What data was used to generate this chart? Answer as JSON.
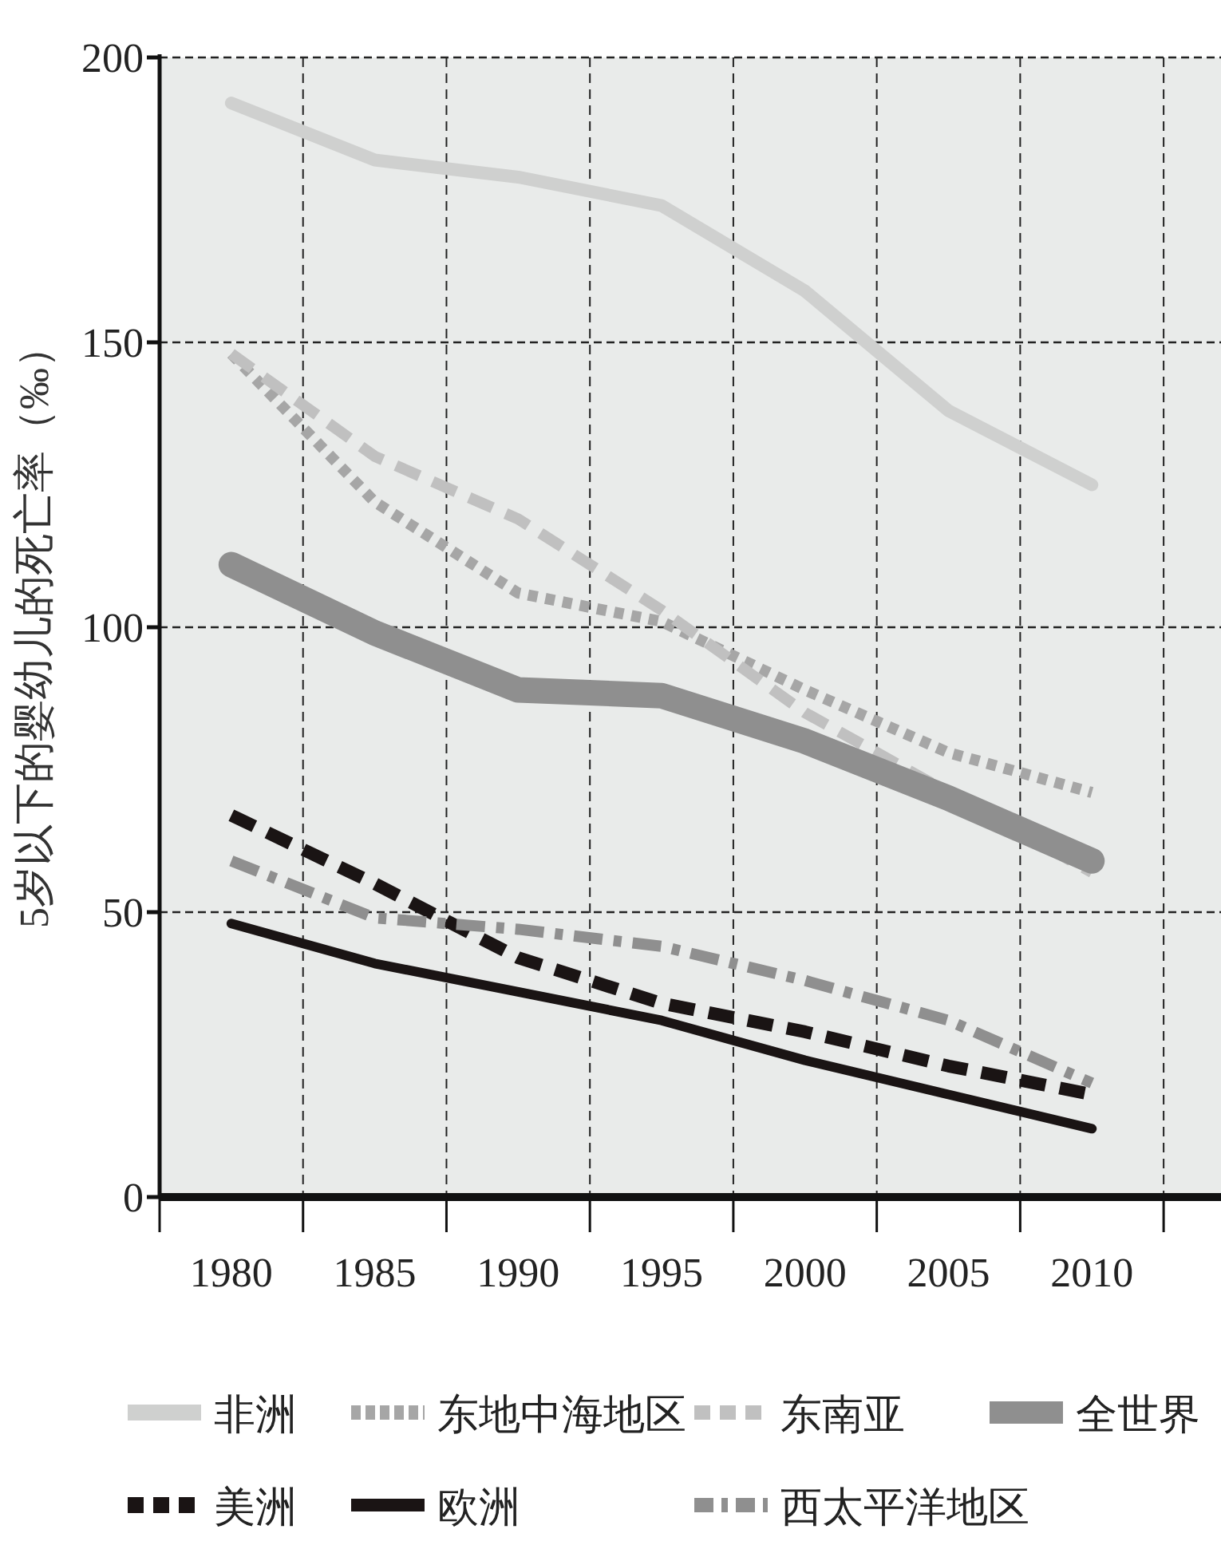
{
  "chart_data": {
    "type": "line",
    "ylabel": "5岁以下的婴幼儿的死亡率（‰）",
    "categories": [
      "1980",
      "1985",
      "1990",
      "1995",
      "2000",
      "2005",
      "2010"
    ],
    "ylim": [
      0,
      200
    ],
    "yticks": [
      0,
      50,
      100,
      150,
      200
    ],
    "grid": true,
    "legend": "bottom",
    "series": [
      {
        "name": "非洲",
        "color": "#cfd0cf",
        "line_style": "solid",
        "values": [
          192,
          182,
          179,
          174,
          159,
          138,
          125
        ]
      },
      {
        "name": "东地中海地区",
        "color": "#a6a6a6",
        "line_style": "dotted",
        "values": [
          148,
          122,
          106,
          101,
          89,
          78,
          71
        ]
      },
      {
        "name": "东南亚",
        "color": "#c0c0c0",
        "line_style": "dashed",
        "values": [
          148,
          130,
          119,
          103,
          85,
          71,
          57
        ]
      },
      {
        "name": "全世界",
        "color": "#8f8f8f",
        "line_style": "solid",
        "values": [
          111,
          99,
          89,
          88,
          80,
          70,
          59
        ]
      },
      {
        "name": "美洲",
        "color": "#1a1414",
        "line_style": "dashed",
        "values": [
          67,
          55,
          42,
          34,
          29,
          23,
          18
        ]
      },
      {
        "name": "欧洲",
        "color": "#1a1414",
        "line_style": "solid",
        "values": [
          48,
          41,
          36,
          31,
          24,
          18,
          12
        ]
      },
      {
        "name": "西太平洋地区",
        "color": "#8f8f8f",
        "line_style": "dashdot",
        "values": [
          59,
          49,
          47,
          44,
          38,
          31,
          20
        ]
      }
    ]
  }
}
